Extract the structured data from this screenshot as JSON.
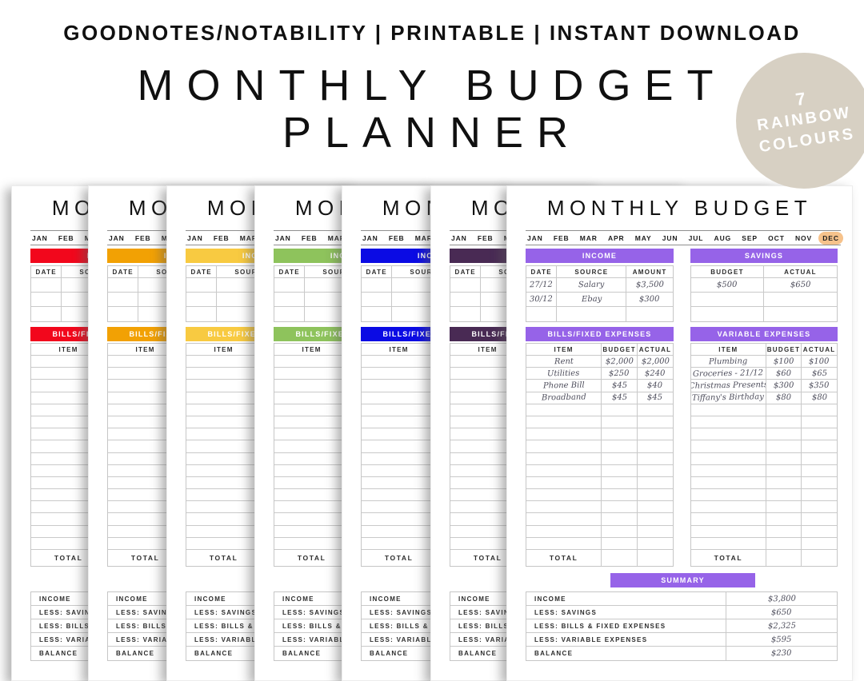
{
  "header": {
    "top_line": "GOODNOTES/NOTABILITY | PRINTABLE | INSTANT DOWNLOAD",
    "title_line1": "MONTHLY BUDGET",
    "title_line2": "PLANNER",
    "badge": {
      "line1": "7",
      "line2": "RAINBOW",
      "line3": "COLOURS",
      "color": "#d7d0c3",
      "text_color": "#ffffff"
    }
  },
  "planner": {
    "page_title": "MONTHLY BUDGET",
    "months": [
      "JAN",
      "FEB",
      "MAR",
      "APR",
      "MAY",
      "JUN",
      "JUL",
      "AUG",
      "SEP",
      "OCT",
      "NOV",
      "DEC"
    ],
    "highlighted_month": "DEC",
    "highlight_color": "#f6c28b",
    "sections": {
      "income": {
        "label": "INCOME",
        "columns": [
          "DATE",
          "SOURCE",
          "AMOUNT"
        ]
      },
      "savings": {
        "label": "SAVINGS",
        "columns": [
          "BUDGET",
          "ACTUAL"
        ]
      },
      "bills": {
        "label": "BILLS/FIXED EXPENSES",
        "columns": [
          "ITEM",
          "BUDGET",
          "ACTUAL"
        ]
      },
      "variable": {
        "label": "VARIABLE EXPENSES",
        "columns": [
          "ITEM",
          "BUDGET",
          "ACTUAL"
        ]
      },
      "summary": {
        "label": "SUMMARY",
        "rows": [
          "INCOME",
          "LESS: SAVINGS",
          "LESS: BILLS & FIXED EXPENSES",
          "LESS: VARIABLE EXPENSES",
          "BALANCE"
        ]
      }
    },
    "total_label": "TOTAL",
    "entries": {
      "income": [
        [
          "27/12",
          "Salary",
          "$3,500"
        ],
        [
          "30/12",
          "Ebay",
          "$300"
        ],
        [
          "",
          "",
          ""
        ]
      ],
      "savings": [
        [
          "$500",
          "$650"
        ],
        [
          "",
          ""
        ],
        [
          "",
          ""
        ]
      ],
      "bills": [
        [
          "Rent",
          "$2,000",
          "$2,000"
        ],
        [
          "Utilities",
          "$250",
          "$240"
        ],
        [
          "Phone Bill",
          "$45",
          "$40"
        ],
        [
          "Broadband",
          "$45",
          "$45"
        ]
      ],
      "variable": [
        [
          "Plumbing",
          "$100",
          "$100"
        ],
        [
          "Groceries - 21/12",
          "$60",
          "$65"
        ],
        [
          "Christmas Presents",
          "$300",
          "$350"
        ],
        [
          "Tiffany's Birthday",
          "$80",
          "$80"
        ]
      ],
      "summary_values": [
        "$3,800",
        "$650",
        "$2,325",
        "$595",
        "$230"
      ]
    },
    "pages": [
      {
        "name": "red",
        "color": "#f2071c"
      },
      {
        "name": "orange",
        "color": "#f2a104"
      },
      {
        "name": "yellow",
        "color": "#f8ca41"
      },
      {
        "name": "green",
        "color": "#8ec35c"
      },
      {
        "name": "blue",
        "color": "#0b0be4"
      },
      {
        "name": "plum",
        "color": "#492a54"
      },
      {
        "name": "purple",
        "color": "#9663e8",
        "front": true
      }
    ]
  }
}
